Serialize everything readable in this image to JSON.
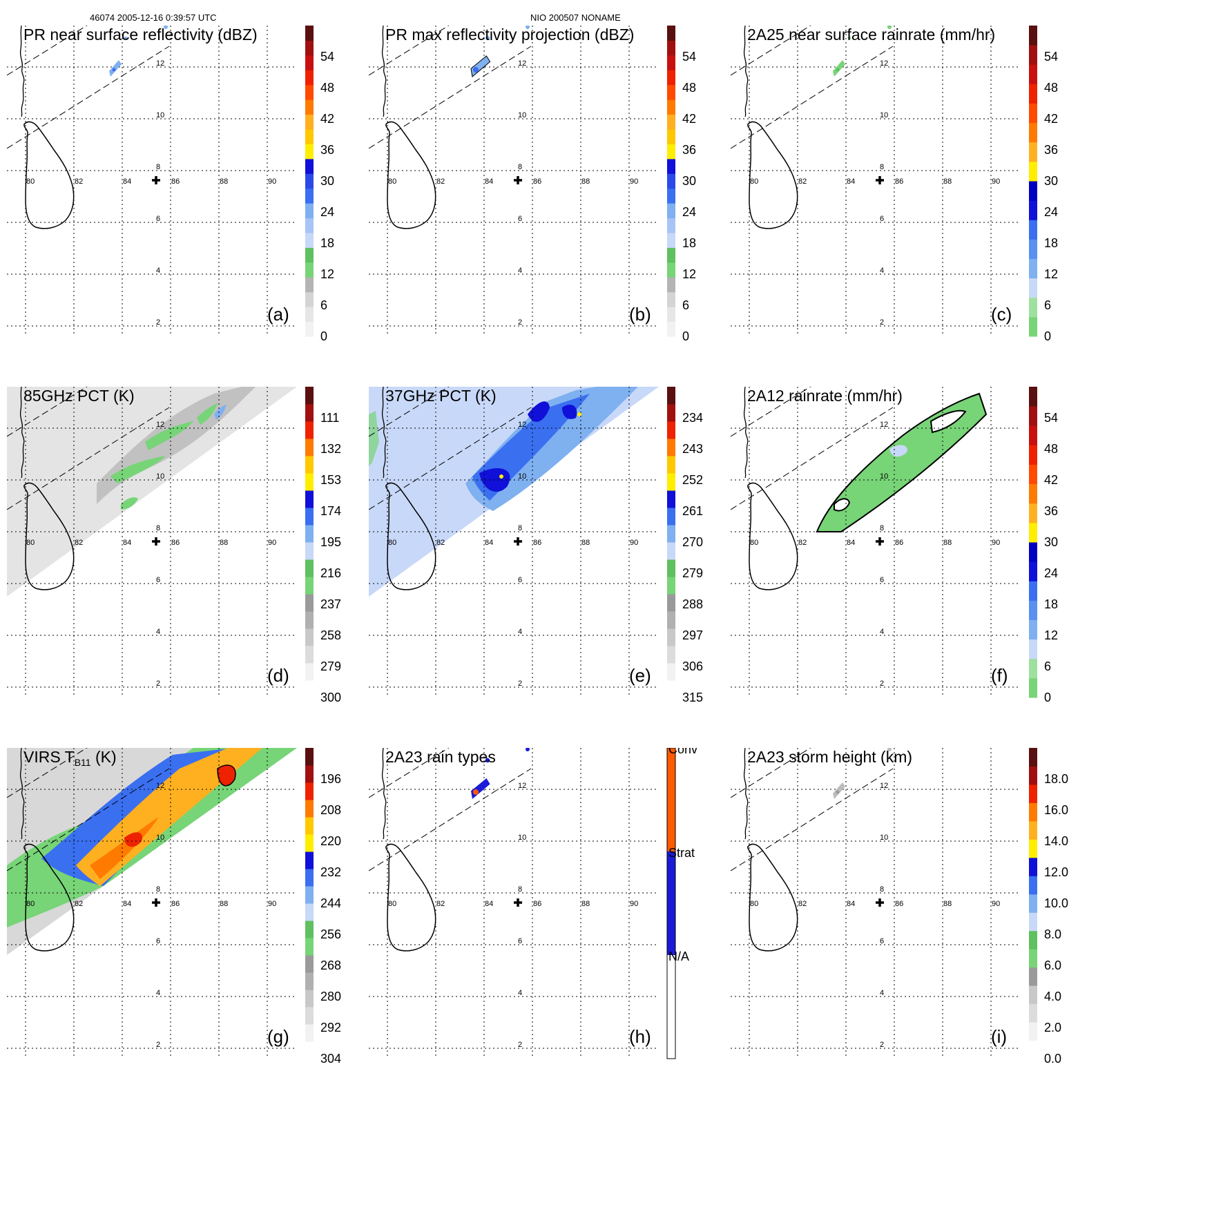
{
  "header": {
    "left": "46074 2005-12-16 0:39:57 UTC",
    "center": "NIO 200507 NONAME"
  },
  "map_ticks": {
    "lon": [
      "80",
      "82",
      "84",
      "86",
      "88",
      "90"
    ],
    "lat": [
      "12",
      "10",
      "8",
      "6",
      "4",
      "2"
    ]
  },
  "chart_data": [
    {
      "id": "a",
      "type": "heatmap",
      "label": "(a)",
      "title": "PR near surface reflectivity (dBZ)",
      "colorbar": {
        "ticks": [
          "0",
          "6",
          "12",
          "18",
          "24",
          "30",
          "36",
          "42",
          "48",
          "54"
        ]
      },
      "swath": "pr"
    },
    {
      "id": "b",
      "type": "heatmap",
      "label": "(b)",
      "title": "PR max reflectivity projection (dBZ)",
      "colorbar": {
        "ticks": [
          "0",
          "6",
          "12",
          "18",
          "24",
          "30",
          "36",
          "42",
          "48",
          "54"
        ]
      },
      "swath": "pr"
    },
    {
      "id": "c",
      "type": "heatmap",
      "label": "(c)",
      "title": "2A25 near surface rainrate (mm/hr)",
      "colorbar": {
        "ticks": [
          "0",
          "6",
          "12",
          "18",
          "24",
          "30",
          "36",
          "42",
          "48",
          "54"
        ]
      },
      "swath": "pr"
    },
    {
      "id": "d",
      "type": "heatmap",
      "label": "(d)",
      "title": "85GHz PCT (K)",
      "colorbar": {
        "ticks": [
          "300",
          "279",
          "258",
          "237",
          "216",
          "195",
          "174",
          "153",
          "132",
          "111"
        ]
      },
      "swath": "tmi"
    },
    {
      "id": "e",
      "type": "heatmap",
      "label": "(e)",
      "title": "37GHz PCT (K)",
      "colorbar": {
        "ticks": [
          "315",
          "306",
          "297",
          "288",
          "279",
          "270",
          "261",
          "252",
          "243",
          "234"
        ]
      },
      "swath": "tmi"
    },
    {
      "id": "f",
      "type": "heatmap",
      "label": "(f)",
      "title": "2A12 rainrate (mm/hr)",
      "colorbar": {
        "ticks": [
          "0",
          "6",
          "12",
          "18",
          "24",
          "30",
          "36",
          "42",
          "48",
          "54"
        ]
      },
      "swath": "tmi"
    },
    {
      "id": "g",
      "type": "heatmap",
      "label": "(g)",
      "title": "VIRS T",
      "title_sub": "B11",
      "title_unit": " (K)",
      "colorbar": {
        "ticks": [
          "304",
          "292",
          "280",
          "268",
          "256",
          "244",
          "232",
          "220",
          "208",
          "196"
        ]
      },
      "swath": "virs"
    },
    {
      "id": "h",
      "type": "heatmap",
      "label": "(h)",
      "title": "2A23 rain types",
      "colorbar": {
        "ticks": [
          "N/A",
          "Strat",
          "Conv"
        ]
      },
      "swath": "pr"
    },
    {
      "id": "i",
      "type": "heatmap",
      "label": "(i)",
      "title": "2A23 storm height (km)",
      "colorbar": {
        "ticks": [
          "0.0",
          "2.0",
          "4.0",
          "6.0",
          "8.0",
          "10.0",
          "12.0",
          "14.0",
          "16.0",
          "18.0"
        ]
      },
      "swath": "pr"
    }
  ],
  "colors": {
    "gray_light": "#f2f2f2",
    "gray_mid": "#c8c8c8",
    "gray_dark": "#9a9a9a",
    "green": "#77d477",
    "blue_pale": "#c8d8f8",
    "blue_light": "#7fb0f0",
    "blue_mid": "#3a6ff0",
    "blue_dark": "#1010d8",
    "yellow": "#ffee00",
    "orange_light": "#ffb020",
    "orange": "#ff7a00",
    "red": "#ee2200",
    "darkred": "#a01010",
    "brown": "#5a1010",
    "conv": "#ff5a00",
    "strat": "#1a1ad8"
  }
}
